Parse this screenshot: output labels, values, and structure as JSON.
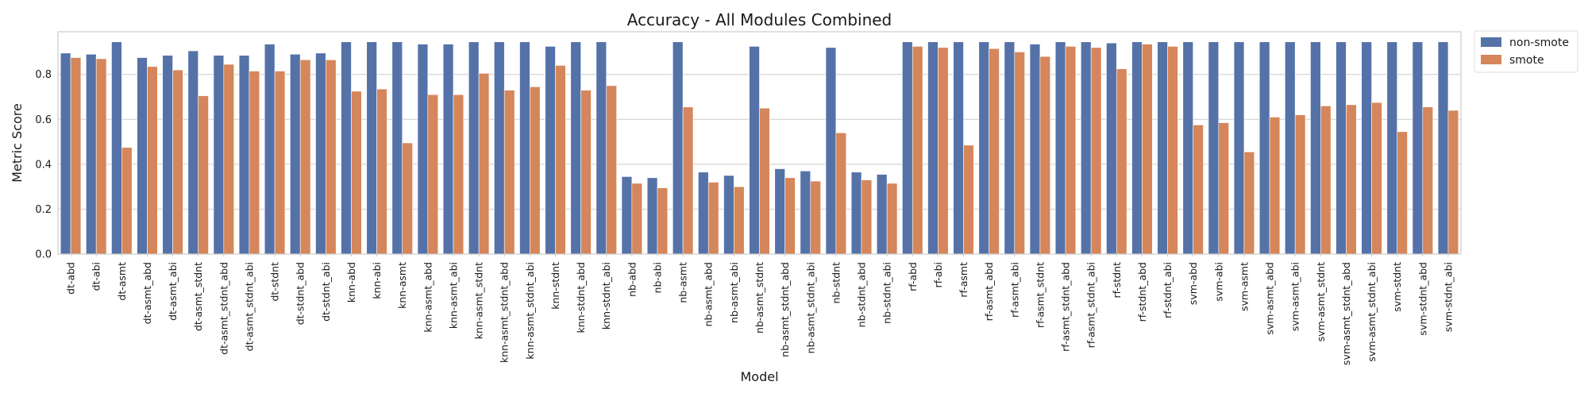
{
  "chart_data": {
    "type": "bar",
    "title": "Accuracy - All Modules Combined",
    "xlabel": "Model",
    "ylabel": "Metric Score",
    "ylim": [
      0,
      0.99
    ],
    "yticks": [
      "0.0",
      "0.2",
      "0.4",
      "0.6",
      "0.8"
    ],
    "grid": true,
    "legend_position": "outside-top-right",
    "categories": [
      "dt-abd",
      "dt-abi",
      "dt-asmt",
      "dt-asmt_abd",
      "dt-asmt_abi",
      "dt-asmt_stdnt",
      "dt-asmt_stdnt_abd",
      "dt-asmt_stdnt_abi",
      "dt-stdnt",
      "dt-stdnt_abd",
      "dt-stdnt_abi",
      "knn-abd",
      "knn-abi",
      "knn-asmt",
      "knn-asmt_abd",
      "knn-asmt_abi",
      "knn-asmt_stdnt",
      "knn-asmt_stdnt_abd",
      "knn-asmt_stdnt_abi",
      "knn-stdnt",
      "knn-stdnt_abd",
      "knn-stdnt_abi",
      "nb-abd",
      "nb-abi",
      "nb-asmt",
      "nb-asmt_abd",
      "nb-asmt_abi",
      "nb-asmt_stdnt",
      "nb-asmt_stdnt_abd",
      "nb-asmt_stdnt_abi",
      "nb-stdnt",
      "nb-stdnt_abd",
      "nb-stdnt_abi",
      "rf-abd",
      "rf-abi",
      "rf-asmt",
      "rf-asmt_abd",
      "rf-asmt_abi",
      "rf-asmt_stdnt",
      "rf-asmt_stdnt_abd",
      "rf-asmt_stdnt_abi",
      "rf-stdnt",
      "rf-stdnt_abd",
      "rf-stdnt_abi",
      "svm-abd",
      "svm-abi",
      "svm-asmt",
      "svm-asmt_abd",
      "svm-asmt_abi",
      "svm-asmt_stdnt",
      "svm-asmt_stdnt_abd",
      "svm-asmt_stdnt_abi",
      "svm-stdnt",
      "svm-stdnt_abd",
      "svm-stdnt_abi"
    ],
    "series": [
      {
        "name": "non-smote",
        "color": "#5572a8",
        "values": [
          0.895,
          0.89,
          0.945,
          0.875,
          0.885,
          0.905,
          0.885,
          0.885,
          0.935,
          0.89,
          0.895,
          0.945,
          0.945,
          0.945,
          0.935,
          0.935,
          0.945,
          0.945,
          0.945,
          0.925,
          0.945,
          0.945,
          0.345,
          0.34,
          0.945,
          0.365,
          0.35,
          0.925,
          0.38,
          0.37,
          0.92,
          0.365,
          0.355,
          0.945,
          0.945,
          0.945,
          0.945,
          0.945,
          0.935,
          0.945,
          0.945,
          0.94,
          0.945,
          0.945,
          0.945,
          0.945,
          0.945,
          0.945,
          0.945,
          0.945,
          0.945,
          0.945,
          0.945,
          0.945,
          0.945
        ]
      },
      {
        "name": "smote",
        "color": "#d5865a",
        "values": [
          0.875,
          0.87,
          0.475,
          0.835,
          0.82,
          0.705,
          0.845,
          0.815,
          0.815,
          0.865,
          0.865,
          0.725,
          0.735,
          0.495,
          0.71,
          0.71,
          0.805,
          0.73,
          0.745,
          0.84,
          0.73,
          0.75,
          0.315,
          0.295,
          0.655,
          0.32,
          0.3,
          0.65,
          0.34,
          0.325,
          0.54,
          0.33,
          0.315,
          0.925,
          0.92,
          0.485,
          0.915,
          0.9,
          0.88,
          0.925,
          0.92,
          0.825,
          0.935,
          0.925,
          0.575,
          0.585,
          0.455,
          0.61,
          0.62,
          0.66,
          0.665,
          0.675,
          0.545,
          0.655,
          0.64
        ]
      }
    ]
  }
}
